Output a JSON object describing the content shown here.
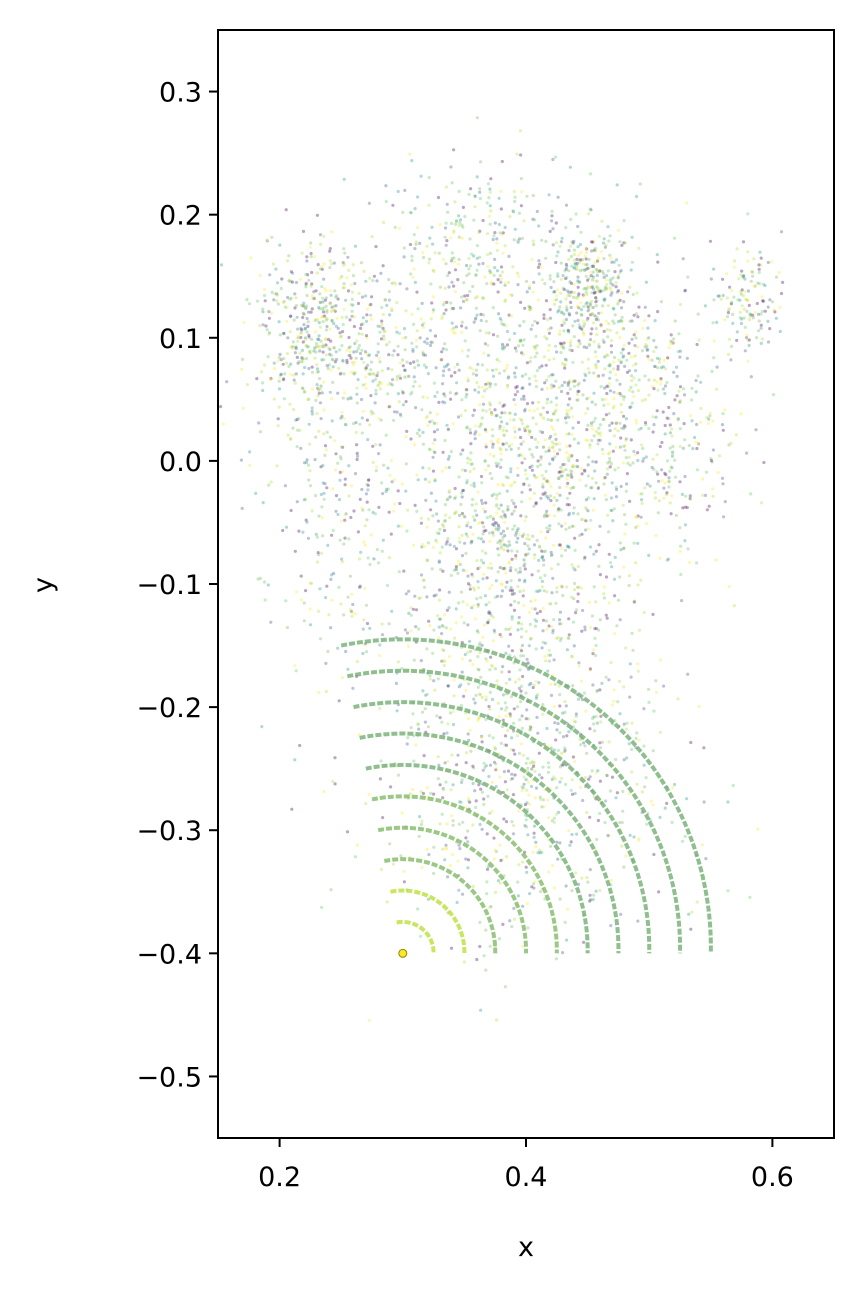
{
  "chart_data": {
    "type": "scatter",
    "title": "",
    "xlabel": "x",
    "ylabel": "y",
    "xlim": [
      0.15,
      0.65
    ],
    "ylim": [
      -0.55,
      0.35
    ],
    "xticks": [
      0.2,
      0.4,
      0.6
    ],
    "xtick_labels": [
      "0.2",
      "0.4",
      "0.6"
    ],
    "yticks": [
      0.3,
      0.2,
      0.1,
      0.0,
      -0.1,
      -0.2,
      -0.3,
      -0.4,
      -0.5
    ],
    "ytick_labels": [
      "0.3",
      "0.2",
      "0.1",
      "0.0",
      "−0.1",
      "−0.2",
      "−0.3",
      "−0.4",
      "−0.5"
    ],
    "grid": false,
    "legend": "none",
    "origin_point": [
      0.3,
      -0.4
    ],
    "arc_radii": [
      0.025,
      0.05,
      0.075,
      0.1,
      0.125,
      0.15,
      0.175,
      0.2,
      0.225,
      0.25
    ],
    "clusters": [
      {
        "center": [
          0.23,
          0.11
        ],
        "spread": [
          0.025,
          0.035
        ],
        "weight": 0.1
      },
      {
        "center": [
          0.45,
          0.14
        ],
        "spread": [
          0.018,
          0.03
        ],
        "weight": 0.08
      },
      {
        "center": [
          0.41,
          0.03
        ],
        "spread": [
          0.04,
          0.06
        ],
        "weight": 0.14
      },
      {
        "center": [
          0.38,
          -0.08
        ],
        "spread": [
          0.05,
          0.07
        ],
        "weight": 0.18
      },
      {
        "center": [
          0.36,
          0.18
        ],
        "spread": [
          0.035,
          0.035
        ],
        "weight": 0.06
      },
      {
        "center": [
          0.5,
          0.03
        ],
        "spread": [
          0.035,
          0.06
        ],
        "weight": 0.1
      },
      {
        "center": [
          0.58,
          0.13
        ],
        "spread": [
          0.014,
          0.02
        ],
        "weight": 0.03
      },
      {
        "center": [
          0.4,
          -0.25
        ],
        "spread": [
          0.06,
          0.07
        ],
        "weight": 0.18
      },
      {
        "center": [
          0.24,
          -0.05
        ],
        "spread": [
          0.03,
          0.06
        ],
        "weight": 0.05
      },
      {
        "center": [
          0.3,
          0.08
        ],
        "spread": [
          0.04,
          0.05
        ],
        "weight": 0.08
      }
    ],
    "colors": [
      "#440154",
      "#3b528b",
      "#21918c",
      "#5ec962",
      "#b5de2b",
      "#fde725",
      "#7ab55c"
    ],
    "origin_color": "#fde725"
  }
}
